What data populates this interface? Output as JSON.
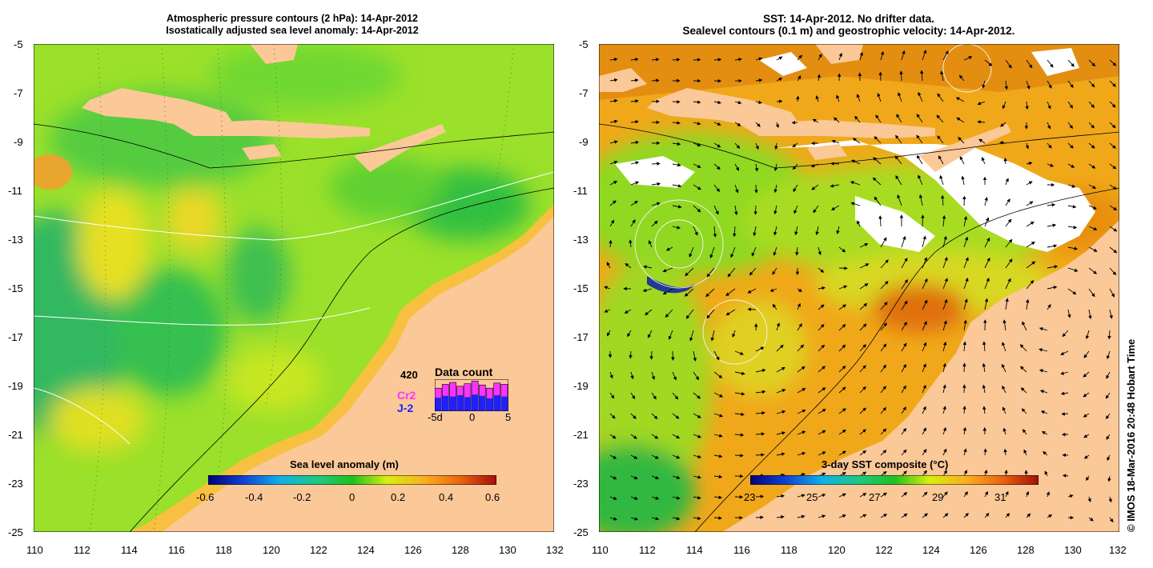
{
  "left_panel": {
    "title_line1": "Atmospheric pressure contours (2 hPa): 14-Apr-2012",
    "title_line2": "Isostatically adjusted sea level anomaly: 14-Apr-2012",
    "colorbar": {
      "label": "Sea level anomaly (m)",
      "ticks": [
        "-0.6",
        "-0.4",
        "-0.2",
        "0",
        "0.2",
        "0.4",
        "0.6"
      ],
      "range": [
        -0.6,
        0.6
      ]
    },
    "data_count": {
      "title": "Data count",
      "max_label": "420",
      "series_cr2": "Cr2",
      "series_j2": "J-2",
      "x_ticks": [
        "-5d",
        "0",
        "5"
      ],
      "cr2_fraction": [
        0.72,
        0.84,
        0.9,
        0.78,
        0.86,
        0.94,
        0.82,
        0.72,
        0.88,
        0.84
      ],
      "j2_fraction": [
        0.42,
        0.48,
        0.46,
        0.5,
        0.44,
        0.52,
        0.48,
        0.4,
        0.5,
        0.46
      ],
      "colors": {
        "cr2": "#ff33ff",
        "j2": "#2020ff"
      }
    }
  },
  "right_panel": {
    "title_line1": "SST: 14-Apr-2012. No drifter data.",
    "title_line2": "Sealevel contours (0.1 m) and geostrophic velocity: 14-Apr-2012.",
    "colorbar": {
      "label": "3-day SST composite (°C)",
      "ticks": [
        "23",
        "25",
        "27",
        "29",
        "31"
      ],
      "range": [
        23,
        32.5
      ]
    }
  },
  "axes": {
    "lon_ticks": [
      "110",
      "112",
      "114",
      "116",
      "118",
      "120",
      "122",
      "124",
      "126",
      "128",
      "130",
      "132"
    ],
    "lat_ticks": [
      "-5",
      "-7",
      "-9",
      "-11",
      "-13",
      "-15",
      "-17",
      "-19",
      "-21",
      "-23",
      "-25"
    ],
    "lon_range": [
      110,
      132
    ],
    "lat_range": [
      -25,
      -5
    ]
  },
  "colors": {
    "land": "#fbc898",
    "cloud": "#ffffff"
  },
  "credit": "© IMOS 18-Mar-2016 20:48 Hobart Time"
}
